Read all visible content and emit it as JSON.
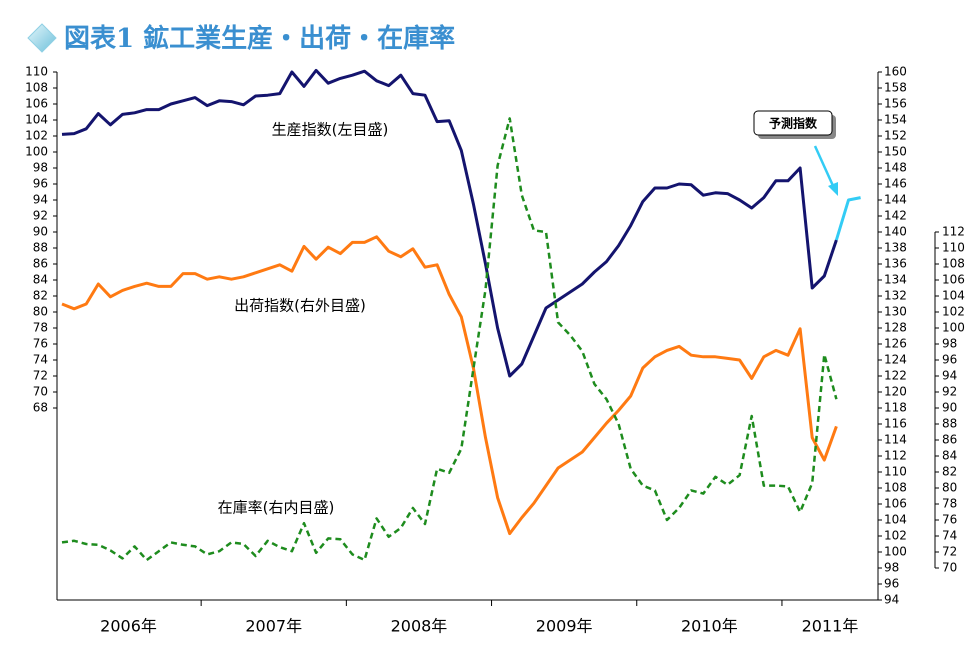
{
  "chart_data": {
    "type": "line",
    "title": "図表1 鉱工業生産・出荷・在庫率",
    "years": [
      "2006年",
      "2007年",
      "2008年",
      "2009年",
      "2010年",
      "2011年"
    ],
    "ylim": [
      44,
      110
    ],
    "yticks": [
      68,
      70,
      72,
      74,
      76,
      78,
      80,
      82,
      84,
      86,
      88,
      90,
      92,
      94,
      96,
      98,
      100,
      102,
      104,
      106,
      108,
      110
    ],
    "y2lim": [
      94,
      160
    ],
    "y2ticks": [
      94,
      96,
      98,
      100,
      102,
      104,
      106,
      108,
      110,
      112,
      114,
      116,
      118,
      120,
      122,
      124,
      126,
      128,
      130,
      132,
      134,
      136,
      138,
      140,
      142,
      144,
      146,
      148,
      150,
      152,
      154,
      156,
      158,
      160
    ],
    "y3lim": [
      66,
      132
    ],
    "y3ticks": [
      70,
      72,
      74,
      76,
      78,
      80,
      82,
      84,
      86,
      88,
      90,
      92,
      94,
      96,
      98,
      100,
      102,
      104,
      106,
      108,
      110,
      112
    ],
    "series": [
      {
        "name": "生産指数(左目盛)",
        "color": "#14146e",
        "axis": "y",
        "values": [
          102.2,
          102.3,
          102.9,
          104.8,
          103.4,
          104.7,
          104.9,
          105.3,
          105.3,
          106,
          106.4,
          106.8,
          105.8,
          106.4,
          106.3,
          105.9,
          107,
          107.1,
          107.3,
          110,
          108.2,
          110.2,
          108.6,
          109.2,
          109.6,
          110.1,
          108.9,
          108.3,
          109.6,
          107.3,
          107.1,
          103.8,
          103.9,
          100.2,
          93.5,
          86,
          78,
          72,
          73.5,
          77,
          80.5,
          81.5,
          82.5,
          83.5,
          85,
          86.3,
          88.3,
          90.8,
          93.8,
          95.5,
          95.5,
          96,
          95.9,
          94.6,
          94.9,
          94.8,
          94,
          93,
          94.3,
          96.4,
          96.4,
          98,
          83,
          84.5,
          89
        ]
      },
      {
        "name": "予測指数",
        "color": "#33ccf5",
        "axis": "y",
        "values": [
          null,
          null,
          null,
          null,
          null,
          null,
          null,
          null,
          null,
          null,
          null,
          null,
          null,
          null,
          null,
          null,
          null,
          null,
          null,
          null,
          null,
          null,
          null,
          null,
          null,
          null,
          null,
          null,
          null,
          null,
          null,
          null,
          null,
          null,
          null,
          null,
          null,
          null,
          null,
          null,
          null,
          null,
          null,
          null,
          null,
          null,
          null,
          null,
          null,
          null,
          null,
          null,
          null,
          null,
          null,
          null,
          null,
          null,
          null,
          null,
          null,
          null,
          null,
          null,
          89,
          94,
          94.3
        ]
      },
      {
        "name": "出荷指数(右外目盛)",
        "color": "#ff7a12",
        "axis": "y2",
        "values": [
          131.0,
          130.4,
          131.0,
          133.5,
          131.9,
          132.7,
          133.2,
          133.6,
          133.2,
          133.2,
          134.8,
          134.8,
          134.1,
          134.4,
          134.1,
          134.4,
          134.9,
          135.4,
          135.9,
          135.1,
          138.2,
          136.6,
          138.1,
          137.3,
          138.7,
          138.7,
          139.4,
          137.6,
          136.9,
          137.9,
          135.6,
          135.9,
          132.2,
          129.4,
          123.0,
          114.3,
          106.8,
          102.3,
          104.3,
          106.1,
          108.3,
          110.5,
          111.5,
          112.5,
          114.3,
          116.1,
          117.7,
          119.5,
          123.0,
          124.4,
          125.2,
          125.7,
          124.6,
          124.4,
          124.4,
          124.2,
          124.0,
          121.7,
          124.4,
          125.2,
          124.6,
          127.9,
          114.3,
          111.5,
          115.7
        ]
      },
      {
        "name": "在庫率(右内目盛)",
        "color": "#1e8c1e",
        "axis": "y3",
        "dashed": true,
        "values": [
          73.2,
          73.4,
          73.0,
          72.9,
          72.2,
          71.2,
          72.7,
          71.0,
          72.1,
          73.2,
          72.9,
          72.7,
          71.7,
          72.1,
          73.2,
          73.0,
          71.5,
          73.4,
          72.6,
          72.1,
          75.6,
          71.9,
          73.7,
          73.6,
          71.7,
          71.0,
          76.2,
          73.9,
          75.0,
          77.5,
          75.5,
          82.4,
          81.9,
          84.9,
          94.9,
          104.8,
          120.3,
          126.2,
          116.6,
          112.2,
          112.0,
          100.7,
          99.1,
          97.1,
          93.0,
          91.1,
          88.0,
          82.4,
          80.3,
          79.7,
          76.0,
          77.5,
          79.7,
          79.3,
          81.4,
          80.4,
          81.6,
          89.0,
          80.3,
          80.3,
          80.2,
          77.0,
          80.6,
          96.7,
          91.1
        ]
      }
    ]
  }
}
